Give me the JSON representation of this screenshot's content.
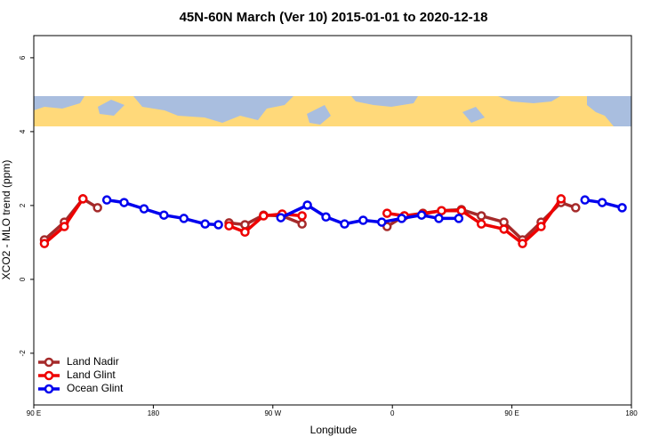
{
  "chart_data": {
    "type": "line",
    "title": "45N-60N March (Ver 10)   2015-01-01 to 2020-12-18",
    "x_label": "Longitude",
    "y_label": "XCO2 - MLO trend (ppm)",
    "xlim": [
      90,
      540
    ],
    "ylim": [
      -3.4,
      6.6
    ],
    "xticks": [
      {
        "value": 90,
        "label": "90 E"
      },
      180,
      {
        "value": 270,
        "label": "90 W"
      },
      {
        "value": 360,
        "label": "0"
      },
      {
        "value": 450,
        "label": "90 E"
      },
      {
        "value": 540,
        "label": "180"
      }
    ],
    "yticks": [
      -2,
      0,
      2,
      4,
      6
    ],
    "legend": "bottom-left",
    "series": [
      {
        "name": "Land Nadir",
        "color": "#a52a2a",
        "x": [
          98,
          113,
          127,
          138,
          null,
          237,
          249,
          263,
          277,
          292,
          null,
          356,
          369,
          383,
          397,
          412,
          427,
          444,
          458,
          472,
          487,
          498
        ],
        "values": [
          1.07,
          1.55,
          2.18,
          1.94,
          null,
          1.53,
          1.48,
          1.74,
          1.72,
          1.5,
          null,
          1.43,
          1.72,
          1.79,
          1.86,
          1.89,
          1.72,
          1.55,
          1.07,
          1.55,
          2.08,
          1.94
        ]
      },
      {
        "name": "Land Glint",
        "color": "#ee0000",
        "x": [
          98,
          113,
          127,
          null,
          237,
          249,
          263,
          277,
          292,
          null,
          356,
          369,
          383,
          397,
          412,
          427,
          444,
          458,
          472,
          487
        ],
        "values": [
          0.97,
          1.43,
          2.18,
          null,
          1.45,
          1.28,
          1.72,
          1.77,
          1.72,
          null,
          1.79,
          1.72,
          1.77,
          1.86,
          1.86,
          1.5,
          1.36,
          0.97,
          1.43,
          2.18
        ]
      },
      {
        "name": "Ocean Glint",
        "color": "#0000ee",
        "x": [
          145,
          158,
          173,
          188,
          203,
          219,
          229,
          null,
          276,
          296,
          310,
          324,
          338,
          352,
          367,
          382,
          395,
          410,
          null,
          505,
          518,
          533
        ],
        "values": [
          2.15,
          2.08,
          1.91,
          1.74,
          1.65,
          1.5,
          1.48,
          null,
          1.67,
          2.01,
          1.69,
          1.5,
          1.6,
          1.55,
          1.65,
          1.74,
          1.65,
          1.65,
          null,
          2.15,
          2.08,
          1.94
        ]
      }
    ]
  }
}
